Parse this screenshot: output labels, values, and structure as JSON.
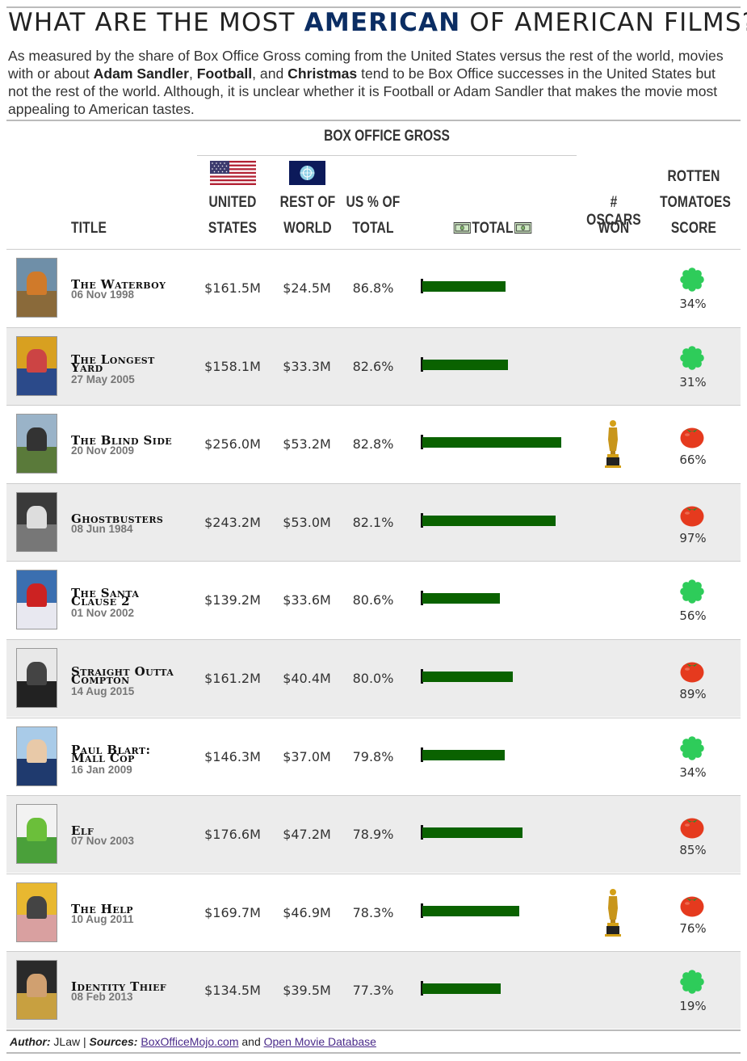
{
  "header": {
    "title_pre": "WHAT ARE THE MOST ",
    "title_highlight": "AMERICAN",
    "title_post": " OF AMERICAN FILMS?",
    "subtitle": {
      "p1": "As measured by the share of Box Office Gross coming from the United States versus the rest of the world, movies with or about ",
      "b1": "Adam Sandler",
      "p2": ", ",
      "b2": "Football",
      "p3": ", and ",
      "b3": "Christmas",
      "p4": " tend to be Box Office successes in the United States but not the rest of the world. Although, it is unclear whether it is Football or Adam Sandler that makes the movie most appealing to American tastes."
    }
  },
  "columns": {
    "group": "BOX OFFICE GROSS",
    "title": "TITLE",
    "us_l1": "UNITED",
    "us_l2": "STATES",
    "rw_l1": "REST OF",
    "rw_l2": "WORLD",
    "pct_l1": "US % OF",
    "pct_l2": "TOTAL",
    "total": "TOTAL",
    "oscars_l1": "# OSCARS",
    "oscars_l2": "WON",
    "rt_l1": "ROTTEN",
    "rt_l2": "TOMATOES",
    "rt_l3": "SCORE"
  },
  "colors": {
    "title_highlight": "#0b2d63",
    "bar": "#0a6200",
    "splat": "#2ecc5a",
    "tomato": "#e53a1e",
    "shade": "#ececec"
  },
  "chart_data": {
    "type": "table",
    "bar_column": "total",
    "bar_max": 309.2,
    "rows": [
      {
        "title_l1": "The Waterboy",
        "title_l2": "",
        "date": "06 Nov 1998",
        "us": "$161.5M",
        "rw": "$24.5M",
        "pct": "86.8%",
        "total": 186.0,
        "oscars": 0,
        "rt_icon": "splat-icon",
        "rt": "34%"
      },
      {
        "title_l1": "The Longest",
        "title_l2": "Yard",
        "date": "27 May 2005",
        "us": "$158.1M",
        "rw": "$33.3M",
        "pct": "82.6%",
        "total": 191.4,
        "oscars": 0,
        "rt_icon": "splat-icon",
        "rt": "31%"
      },
      {
        "title_l1": "The Blind Side",
        "title_l2": "",
        "date": "20 Nov 2009",
        "us": "$256.0M",
        "rw": "$53.2M",
        "pct": "82.8%",
        "total": 309.2,
        "oscars": 1,
        "rt_icon": "tomato-icon",
        "rt": "66%"
      },
      {
        "title_l1": "Ghostbusters",
        "title_l2": "",
        "date": "08 Jun 1984",
        "us": "$243.2M",
        "rw": "$53.0M",
        "pct": "82.1%",
        "total": 296.2,
        "oscars": 0,
        "rt_icon": "tomato-icon",
        "rt": "97%"
      },
      {
        "title_l1": "The Santa",
        "title_l2": "Clause 2",
        "date": "01 Nov 2002",
        "us": "$139.2M",
        "rw": "$33.6M",
        "pct": "80.6%",
        "total": 172.8,
        "oscars": 0,
        "rt_icon": "splat-icon",
        "rt": "56%"
      },
      {
        "title_l1": "Straight Outta",
        "title_l2": "Compton",
        "date": "14 Aug 2015",
        "us": "$161.2M",
        "rw": "$40.4M",
        "pct": "80.0%",
        "total": 201.6,
        "oscars": 0,
        "rt_icon": "tomato-icon",
        "rt": "89%"
      },
      {
        "title_l1": "Paul Blart:",
        "title_l2": "Mall Cop",
        "date": "16 Jan 2009",
        "us": "$146.3M",
        "rw": "$37.0M",
        "pct": "79.8%",
        "total": 183.3,
        "oscars": 0,
        "rt_icon": "splat-icon",
        "rt": "34%"
      },
      {
        "title_l1": "Elf",
        "title_l2": "",
        "date": "07 Nov 2003",
        "us": "$176.6M",
        "rw": "$47.2M",
        "pct": "78.9%",
        "total": 223.8,
        "oscars": 0,
        "rt_icon": "tomato-icon",
        "rt": "85%"
      },
      {
        "title_l1": "The Help",
        "title_l2": "",
        "date": "10 Aug 2011",
        "us": "$169.7M",
        "rw": "$46.9M",
        "pct": "78.3%",
        "total": 216.6,
        "oscars": 1,
        "rt_icon": "tomato-icon",
        "rt": "76%"
      },
      {
        "title_l1": "Identity Thief",
        "title_l2": "",
        "date": "08 Feb 2013",
        "us": "$134.5M",
        "rw": "$39.5M",
        "pct": "77.3%",
        "total": 174.0,
        "oscars": 0,
        "rt_icon": "splat-icon",
        "rt": "19%"
      }
    ]
  },
  "posters": [
    {
      "c1": "#6f8fa8",
      "c2": "#8a6a3a",
      "c3": "#d07a2a"
    },
    {
      "c1": "#d8a020",
      "c2": "#2b4a8a",
      "c3": "#c44"
    },
    {
      "c1": "#9ab3c8",
      "c2": "#5a7a3a",
      "c3": "#333"
    },
    {
      "c1": "#3a3a3a",
      "c2": "#777",
      "c3": "#ddd"
    },
    {
      "c1": "#3b6fb0",
      "c2": "#e8e8f0",
      "c3": "#c22"
    },
    {
      "c1": "#e8e8e8",
      "c2": "#222",
      "c3": "#444"
    },
    {
      "c1": "#a9cbe8",
      "c2": "#1f3a6e",
      "c3": "#e8c9a8"
    },
    {
      "c1": "#f2f2f2",
      "c2": "#4aa03a",
      "c3": "#6bbf3a"
    },
    {
      "c1": "#e8b830",
      "c2": "#d9a0a0",
      "c3": "#444"
    },
    {
      "c1": "#2a2a2a",
      "c2": "#c8a040",
      "c3": "#d0a070"
    }
  ],
  "footer": {
    "author_label": "Author:",
    "author": " JLaw | ",
    "sources_label": "Sources:",
    "src1": "BoxOfficeMojo.com",
    "and": " and ",
    "src2": "Open Movie Database"
  }
}
